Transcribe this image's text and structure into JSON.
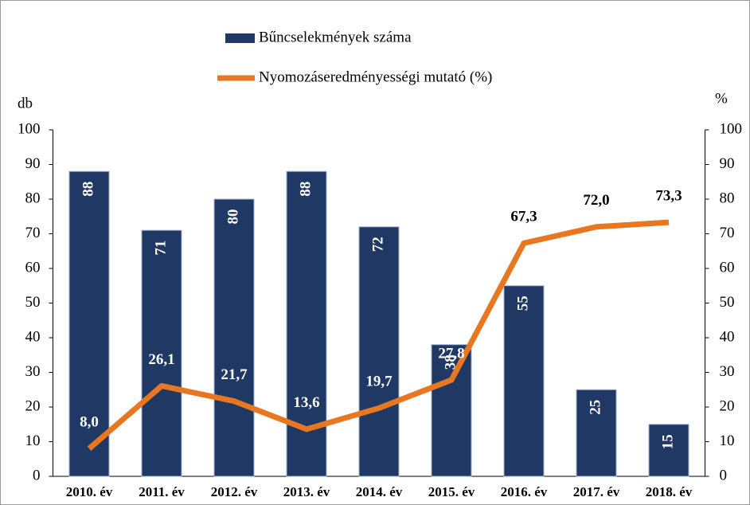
{
  "chart_data": {
    "type": "bar",
    "y_label": "db",
    "y2_label": "%",
    "categories": [
      "2010. év",
      "2011. év",
      "2012. év",
      "2013. év",
      "2014. év",
      "2015. év",
      "2016. év",
      "2017. év",
      "2018. év"
    ],
    "series": [
      {
        "name": "Bűncselekmények száma",
        "color": "#1f3864",
        "values": [
          88,
          71,
          80,
          88,
          72,
          38,
          55,
          25,
          15
        ]
      },
      {
        "name": "Nyomozáseredményességi mutató (%)",
        "color": "#e87722",
        "type": "line",
        "axis": "y2",
        "values": [
          8.0,
          26.1,
          21.7,
          13.6,
          19.7,
          27.8,
          67.3,
          72.0,
          73.3
        ],
        "value_labels": [
          "8,0",
          "26,1",
          "21,7",
          "13,6",
          "19,7",
          "27,8",
          "67,3",
          "72,0",
          "73,3"
        ]
      }
    ],
    "ylim": [
      0,
      100
    ],
    "yticks": [
      0,
      10,
      20,
      30,
      40,
      50,
      60,
      70,
      80,
      90,
      100
    ],
    "y2lim": [
      0,
      100
    ],
    "y2ticks": [
      0,
      10,
      20,
      30,
      40,
      50,
      60,
      70,
      80,
      90,
      100
    ]
  }
}
